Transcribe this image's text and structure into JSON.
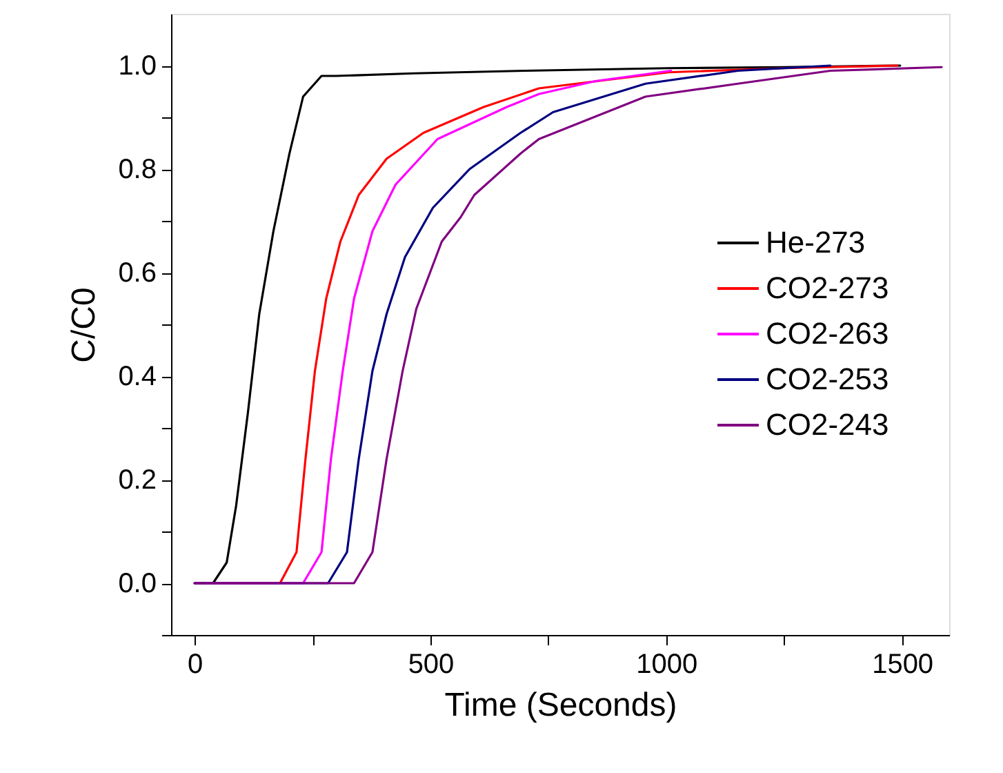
{
  "chart_data": {
    "type": "line",
    "xlabel": "Time (Seconds)",
    "ylabel": "C/C0",
    "xlim": [
      -50,
      1600
    ],
    "ylim": [
      -0.1,
      1.1
    ],
    "xticks": [
      0,
      {
        "value": 250,
        "label": null
      },
      500,
      {
        "value": 750,
        "label": null
      },
      1000,
      {
        "value": 1250,
        "label": null
      },
      1500
    ],
    "yticks": [
      {
        "value": -0.1,
        "label": null
      },
      {
        "value": 0,
        "label": "0.0"
      },
      {
        "value": 0.1,
        "label": null
      },
      0.2,
      {
        "value": 0.3,
        "label": null
      },
      0.4,
      {
        "value": 0.5,
        "label": null
      },
      0.6,
      {
        "value": 0.7,
        "label": null
      },
      0.8,
      {
        "value": 0.9,
        "label": null
      },
      {
        "value": 1,
        "label": "1.0"
      }
    ],
    "grid": false,
    "legend": "right",
    "marker": "none",
    "series": [
      {
        "name": "He-273",
        "color": "#000000",
        "x": [
          0,
          39,
          68,
          88,
          113,
          137,
          167,
          201,
          230,
          269,
          300,
          466,
          700,
          1005,
          1250,
          1496
        ],
        "values": [
          0,
          0,
          0.04,
          0.15,
          0.33,
          0.52,
          0.68,
          0.83,
          0.94,
          0.98,
          0.98,
          0.985,
          0.99,
          0.995,
          0.997,
          1.0
        ]
      },
      {
        "name": "CO2-273",
        "color": "#ff0000",
        "x": [
          0,
          181,
          216,
          235,
          255,
          279,
          309,
          348,
          407,
          485,
          613,
          730,
          1005,
          1250,
          1490
        ],
        "values": [
          0,
          0,
          0.06,
          0.24,
          0.41,
          0.55,
          0.66,
          0.75,
          0.82,
          0.87,
          0.92,
          0.956,
          0.987,
          0.995,
          1.0
        ]
      },
      {
        "name": "CO2-263",
        "color": "#ff00ff",
        "x": [
          0,
          230,
          269,
          289,
          314,
          338,
          377,
          426,
          515,
          662,
          730,
          850,
          1010
        ],
        "values": [
          0,
          0,
          0.06,
          0.24,
          0.41,
          0.55,
          0.68,
          0.77,
          0.858,
          0.92,
          0.945,
          0.97,
          0.99
        ]
      },
      {
        "name": "CO2-253",
        "color": "#000080",
        "x": [
          0,
          283,
          323,
          348,
          377,
          407,
          446,
          505,
          583,
          691,
          760,
          956,
          1152,
          1348
        ],
        "values": [
          0,
          0,
          0.06,
          0.24,
          0.41,
          0.52,
          0.63,
          0.725,
          0.8,
          0.87,
          0.91,
          0.965,
          0.99,
          1.0
        ]
      },
      {
        "name": "CO2-243",
        "color": "#800080",
        "x": [
          0,
          338,
          377,
          407,
          441,
          470,
          524,
          564,
          593,
          691,
          730,
          956,
          1152,
          1348,
          1584
        ],
        "values": [
          0,
          0,
          0.06,
          0.24,
          0.41,
          0.53,
          0.66,
          0.707,
          0.75,
          0.83,
          0.858,
          0.94,
          0.965,
          0.99,
          0.997
        ]
      }
    ]
  }
}
